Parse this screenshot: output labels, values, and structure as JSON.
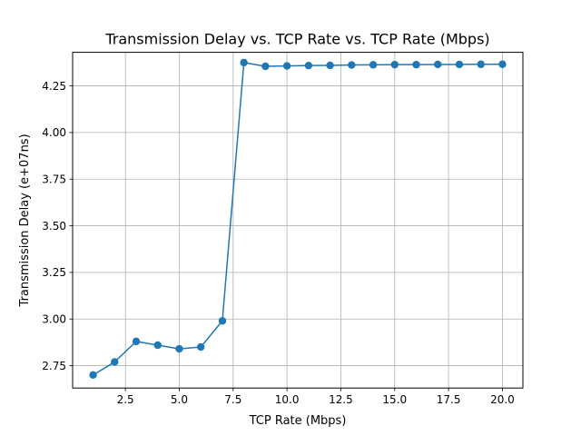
{
  "chart_data": {
    "type": "line",
    "title": "Transmission Delay vs. TCP Rate vs. TCP Rate (Mbps)",
    "xlabel": "TCP Rate (Mbps)",
    "ylabel": "Transmission Delay (e+07ns)",
    "xlim": [
      0.05,
      20.95
    ],
    "ylim": [
      2.63,
      4.43
    ],
    "xticks": [
      2.5,
      5.0,
      7.5,
      10.0,
      12.5,
      15.0,
      17.5,
      20.0
    ],
    "xtick_labels": [
      "2.5",
      "5.0",
      "7.5",
      "10.0",
      "12.5",
      "15.0",
      "17.5",
      "20.0"
    ],
    "yticks": [
      2.75,
      3.0,
      3.25,
      3.5,
      3.75,
      4.0,
      4.25
    ],
    "ytick_labels": [
      "2.75",
      "3.00",
      "3.25",
      "3.50",
      "3.75",
      "4.00",
      "4.25"
    ],
    "grid": true,
    "series": [
      {
        "color": "#1f77b4",
        "marker": "circle",
        "x": [
          1,
          2,
          3,
          4,
          5,
          6,
          7,
          8,
          9,
          10,
          11,
          12,
          13,
          14,
          15,
          16,
          17,
          18,
          19,
          20
        ],
        "values": [
          2.7,
          2.77,
          2.88,
          2.86,
          2.84,
          2.85,
          2.99,
          4.375,
          4.355,
          4.357,
          4.359,
          4.36,
          4.362,
          4.363,
          4.364,
          4.364,
          4.365,
          4.365,
          4.366,
          4.366
        ]
      }
    ]
  }
}
